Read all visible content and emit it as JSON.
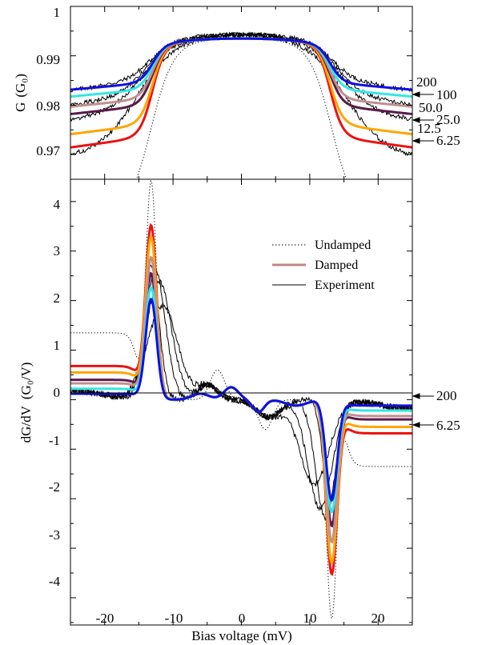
{
  "chart_data": [
    {
      "type": "line",
      "panel": "top",
      "ylabel": "G (G₀)",
      "ylabel_main": "G",
      "ylabel_unit": "G₀",
      "xlim": [
        -25,
        25
      ],
      "ylim": [
        0.965,
        1.0
      ],
      "yticks": [
        0.97,
        0.98,
        0.99,
        1.0
      ],
      "ytick_labels": [
        "0.97",
        "0.98",
        "0.99",
        "1"
      ],
      "gamma_labels": [
        "200",
        "100",
        "50.0",
        "25.0",
        "12.5",
        "6.25"
      ],
      "damped_series": [
        {
          "gamma": "200",
          "color": "#1010e0",
          "edge": 0.9846
        },
        {
          "gamma": "100",
          "color": "#33e6e6",
          "edge": 0.9833
        },
        {
          "gamma": "50.0",
          "color": "#c09090",
          "edge": 0.9814
        },
        {
          "gamma": "25.0",
          "color": "#5a1a4a",
          "edge": 0.98
        },
        {
          "gamma": "12.5",
          "color": "#ffa500",
          "edge": 0.9762
        },
        {
          "gamma": "6.25",
          "color": "#ee1111",
          "edge": 0.9737
        }
      ],
      "peak": 0.9935,
      "undamped_edge": 0.96,
      "experiment_edges": [
        0.985,
        0.982,
        0.979,
        0.9715
      ]
    },
    {
      "type": "line",
      "panel": "bottom",
      "xlabel": "Bias voltage  (mV)",
      "ylabel": "dG/dV  (G₀/V)",
      "ylabel_main": "dG/dV",
      "ylabel_unit": "G₀/V",
      "xlim": [
        -25,
        25
      ],
      "ylim": [
        -4.55,
        4.45
      ],
      "xticks": [
        -20,
        -10,
        0,
        10,
        20
      ],
      "xtick_labels": [
        "-20",
        "-10",
        "0",
        "10",
        "20"
      ],
      "yticks": [
        -4,
        -3,
        -2,
        -1,
        0,
        1,
        2,
        3,
        4
      ],
      "ytick_labels": [
        "-4",
        "-3",
        "-2",
        "-1",
        "0",
        "1",
        "2",
        "3",
        "4"
      ],
      "legend": [
        {
          "label": "Undamped",
          "style": "dotted",
          "color": "#000000"
        },
        {
          "label": "Damped",
          "style": "thick",
          "color": "#c08888"
        },
        {
          "label": "Experiment",
          "style": "solid",
          "color": "#000000"
        }
      ],
      "legend_position": "upper-right",
      "arrow_labels": [
        "200",
        "6.25"
      ],
      "damped_series": [
        {
          "gamma": "200",
          "color": "#1010e0",
          "peak": 2.02,
          "offset": 0.12
        },
        {
          "gamma": "100",
          "color": "#33e6e6",
          "peak": 2.25,
          "offset": 0.22
        },
        {
          "gamma": "50.0",
          "color": "#c09090",
          "peak": 2.85,
          "offset": 0.33
        },
        {
          "gamma": "25.0",
          "color": "#5a1a4a",
          "peak": 2.52,
          "offset": 0.4
        },
        {
          "gamma": "12.5",
          "color": "#ffa500",
          "peak": 3.25,
          "offset": 0.55
        },
        {
          "gamma": "6.25",
          "color": "#ee1111",
          "peak": 3.47,
          "offset": 0.68
        }
      ],
      "undamped": {
        "peak": 4.4,
        "offset": 1.35
      },
      "peak_position_mV": 13.2
    }
  ]
}
